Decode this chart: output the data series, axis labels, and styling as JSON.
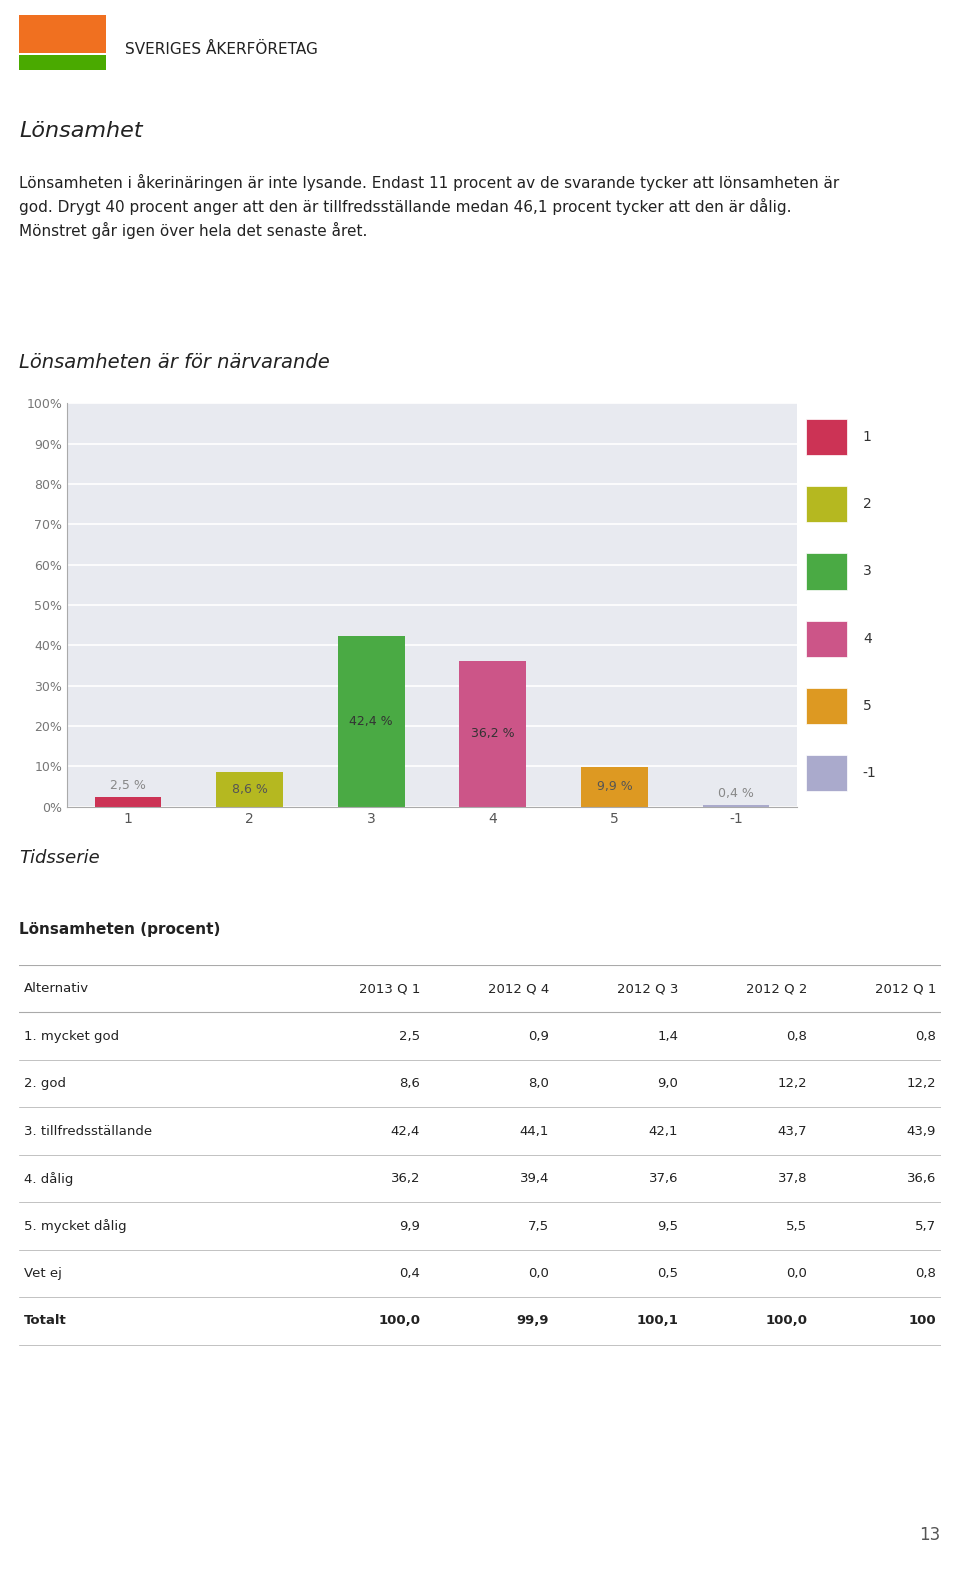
{
  "page_title": "Lönsamhet",
  "chart_title": "Lönsamheten är för närvarande",
  "body_text": "Lönsamheten i åkerinäringen är inte lysande. Endast 11 procent av de svarande tycker att lönsamheten är\ngod. Drygt 40 procent anger att den är tillfredsställande medan 46,1 procent tycker att den är dålig.\nMönstret går igen över hela det senaste året.",
  "categories": [
    "1",
    "2",
    "3",
    "4",
    "5",
    "-1"
  ],
  "values": [
    2.5,
    8.6,
    42.4,
    36.2,
    9.9,
    0.4
  ],
  "bar_colors": [
    "#cc3355",
    "#b5b820",
    "#4aaa44",
    "#cc5588",
    "#dd9922",
    "#aaaacc"
  ],
  "bar_labels": [
    "2,5 %",
    "8,6 %",
    "42,4 %",
    "36,2 %",
    "9,9 %",
    "0,4 %"
  ],
  "legend_labels": [
    "1",
    "2",
    "3",
    "4",
    "5",
    "-1"
  ],
  "legend_colors": [
    "#cc3355",
    "#b5b820",
    "#4aaa44",
    "#cc5588",
    "#dd9922",
    "#aaaacc"
  ],
  "ylim": [
    0,
    100
  ],
  "yticks": [
    0,
    10,
    20,
    30,
    40,
    50,
    60,
    70,
    80,
    90,
    100
  ],
  "ytick_labels": [
    "0%",
    "10%",
    "20%",
    "30%",
    "40%",
    "50%",
    "60%",
    "70%",
    "80%",
    "90%",
    "100%"
  ],
  "background_color": "#ffffff",
  "chart_bg_color": "#e8eaf0",
  "grid_color": "#ffffff",
  "tidsserie_title": "Tidsserie",
  "table_subtitle": "Lönsamheten (procent)",
  "table_headers": [
    "Alternativ",
    "2013 Q 1",
    "2012 Q 4",
    "2012 Q 3",
    "2012 Q 2",
    "2012 Q 1"
  ],
  "table_rows": [
    [
      "1. mycket god",
      "2,5",
      "0,9",
      "1,4",
      "0,8",
      "0,8"
    ],
    [
      "2. god",
      "8,6",
      "8,0",
      "9,0",
      "12,2",
      "12,2"
    ],
    [
      "3. tillfredsställande",
      "42,4",
      "44,1",
      "42,1",
      "43,7",
      "43,9"
    ],
    [
      "4. dålig",
      "36,2",
      "39,4",
      "37,6",
      "37,8",
      "36,6"
    ],
    [
      "5. mycket dålig",
      "9,9",
      "7,5",
      "9,5",
      "5,5",
      "5,7"
    ],
    [
      "Vet ej",
      "0,4",
      "0,0",
      "0,5",
      "0,0",
      "0,8"
    ],
    [
      "Totalt",
      "100,0",
      "99,9",
      "100,1",
      "100,0",
      "100"
    ]
  ],
  "page_num": "13",
  "logo_orange_color": "#f07020",
  "logo_green_color": "#4aaa00",
  "logo_text": "SVERIGES ÅKERFÖRETAG"
}
